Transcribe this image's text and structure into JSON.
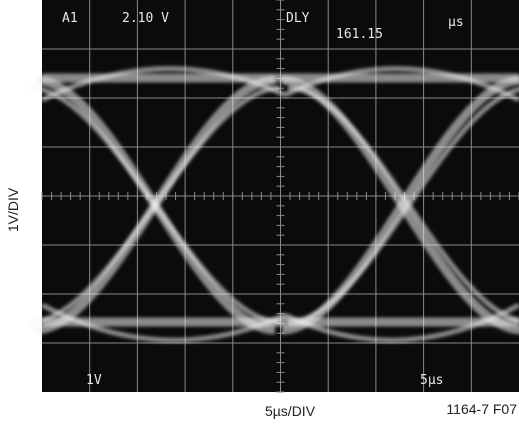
{
  "screen": {
    "channel": "A1",
    "voltage": "2.10 V",
    "delay_label": "DLY",
    "delay_value": "161.15",
    "delay_unit": "µs",
    "vertical_scale": "1V",
    "horizontal_scale": "5µs"
  },
  "axis_labels": {
    "y": "1V/DIV",
    "x": "5µs/DIV"
  },
  "figure_id": "1164-7 F07"
}
